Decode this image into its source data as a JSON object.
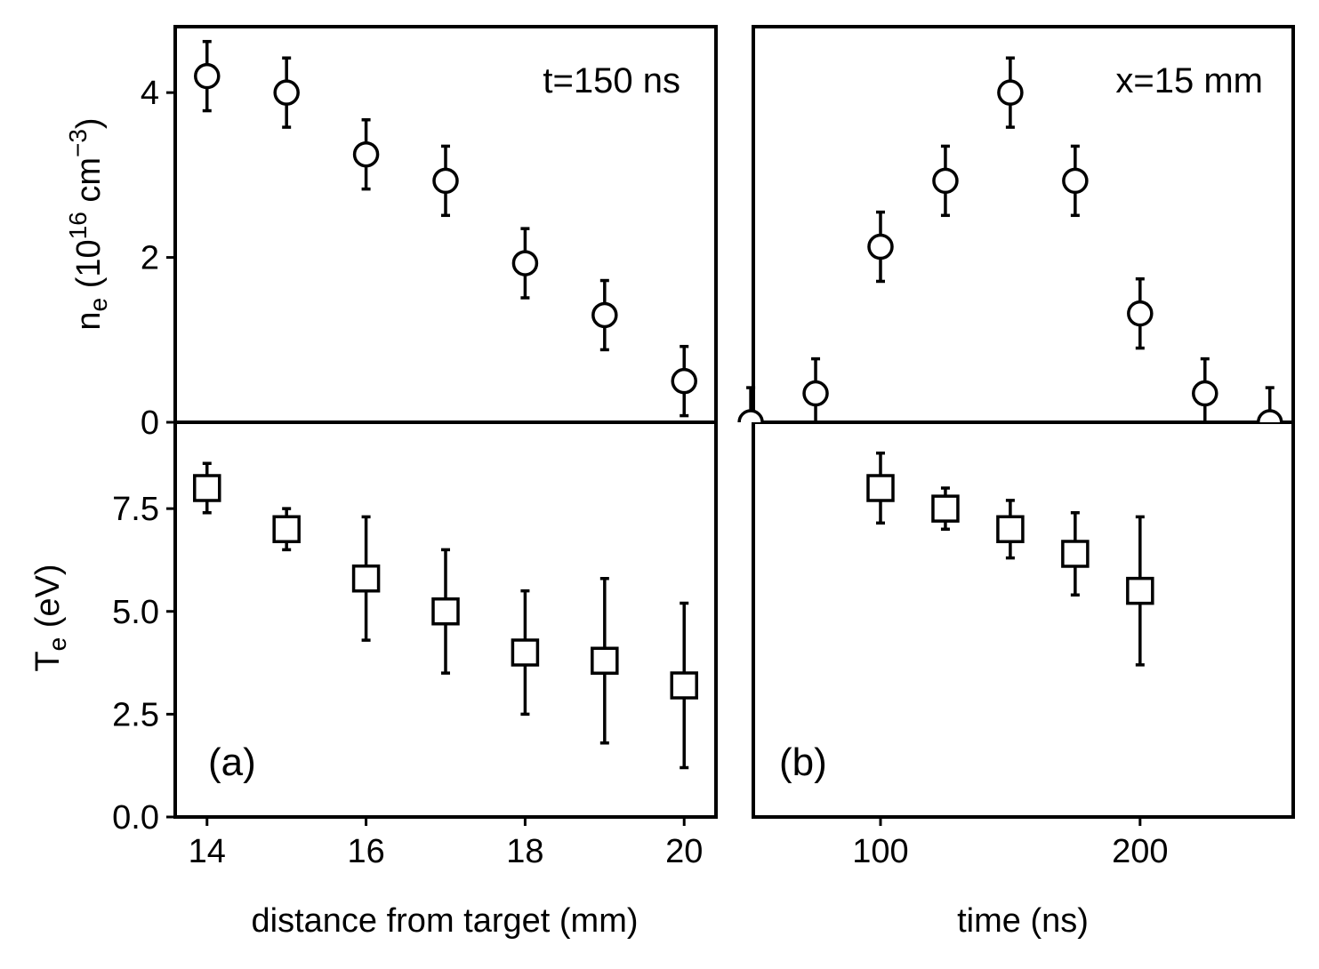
{
  "chart_data": [
    {
      "id": "a_top",
      "type": "scatter",
      "annotation": "t=150 ns",
      "ylabel": {
        "base": "n",
        "sub": "e",
        "mid": " (10",
        "sup": "16",
        "unit": " cm",
        "sup2": "−3",
        "end": ")"
      },
      "xlim": [
        13.6,
        20.4
      ],
      "ylim": [
        0,
        4.8
      ],
      "yticks": [
        {
          "v": 0,
          "label": "0"
        },
        {
          "v": 2,
          "label": "2"
        },
        {
          "v": 4,
          "label": "4"
        }
      ],
      "marker": "circle",
      "points": [
        {
          "x": 14,
          "y": 4.2,
          "err": 0.42
        },
        {
          "x": 15,
          "y": 4.0,
          "err": 0.42
        },
        {
          "x": 16,
          "y": 3.25,
          "err": 0.42
        },
        {
          "x": 17,
          "y": 2.93,
          "err": 0.42
        },
        {
          "x": 18,
          "y": 1.93,
          "err": 0.42
        },
        {
          "x": 19,
          "y": 1.3,
          "err": 0.42
        },
        {
          "x": 20,
          "y": 0.5,
          "err": 0.42
        }
      ]
    },
    {
      "id": "a_bottom",
      "type": "scatter",
      "panel_label": "(a)",
      "xlabel": "distance from target (mm)",
      "ylabel": {
        "base": "T",
        "sub": "e",
        "end": " (eV)"
      },
      "xlim": [
        13.6,
        20.4
      ],
      "ylim": [
        0,
        9.6
      ],
      "xticks": [
        {
          "v": 14,
          "label": "14"
        },
        {
          "v": 16,
          "label": "16"
        },
        {
          "v": 18,
          "label": "18"
        },
        {
          "v": 20,
          "label": "20"
        }
      ],
      "yticks": [
        {
          "v": 0,
          "label": "0.0"
        },
        {
          "v": 2.5,
          "label": "2.5"
        },
        {
          "v": 5,
          "label": "5.0"
        },
        {
          "v": 7.5,
          "label": "7.5"
        }
      ],
      "marker": "square",
      "points": [
        {
          "x": 14,
          "y": 8.0,
          "err": 0.6
        },
        {
          "x": 15,
          "y": 7.0,
          "err": 0.5
        },
        {
          "x": 16,
          "y": 5.8,
          "err": 1.5
        },
        {
          "x": 17,
          "y": 5.0,
          "err": 1.5
        },
        {
          "x": 18,
          "y": 4.0,
          "err": 1.5
        },
        {
          "x": 19,
          "y": 3.8,
          "err": 2.0
        },
        {
          "x": 20,
          "y": 3.2,
          "err": 2.0
        }
      ]
    },
    {
      "id": "b_top",
      "type": "scatter",
      "annotation": "x=15 mm",
      "xlim": [
        51,
        259
      ],
      "ylim": [
        0,
        4.8
      ],
      "marker": "circle",
      "points": [
        {
          "x": 50,
          "y": 0.0,
          "err": 0.42
        },
        {
          "x": 75,
          "y": 0.35,
          "err": 0.42
        },
        {
          "x": 100,
          "y": 2.13,
          "err": 0.42
        },
        {
          "x": 125,
          "y": 2.93,
          "err": 0.42
        },
        {
          "x": 150,
          "y": 4.0,
          "err": 0.42
        },
        {
          "x": 175,
          "y": 2.93,
          "err": 0.42
        },
        {
          "x": 200,
          "y": 1.32,
          "err": 0.42
        },
        {
          "x": 225,
          "y": 0.35,
          "err": 0.42
        },
        {
          "x": 250,
          "y": 0.0,
          "err": 0.42
        }
      ]
    },
    {
      "id": "b_bottom",
      "type": "scatter",
      "panel_label": "(b)",
      "xlabel": "time (ns)",
      "xlim": [
        51,
        259
      ],
      "ylim": [
        0,
        9.6
      ],
      "xticks": [
        {
          "v": 100,
          "label": "100"
        },
        {
          "v": 200,
          "label": "200"
        }
      ],
      "marker": "square",
      "points": [
        {
          "x": 100,
          "y": 8.0,
          "err": 0.85
        },
        {
          "x": 125,
          "y": 7.5,
          "err": 0.5
        },
        {
          "x": 150,
          "y": 7.0,
          "err": 0.7
        },
        {
          "x": 175,
          "y": 6.4,
          "err": 1.0
        },
        {
          "x": 200,
          "y": 5.5,
          "err": 1.8
        }
      ]
    }
  ]
}
